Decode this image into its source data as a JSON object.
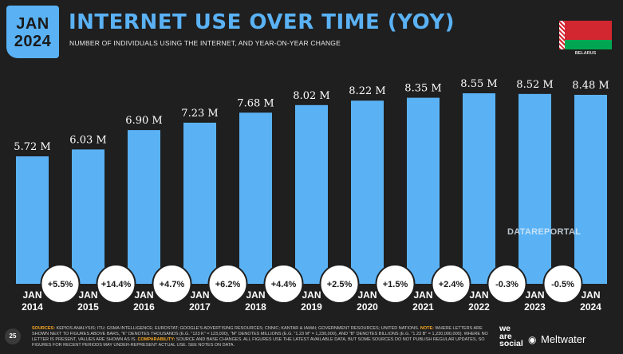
{
  "badge": {
    "month": "JAN",
    "year": "2024"
  },
  "header": {
    "title": "INTERNET USE OVER TIME (YOY)",
    "subtitle": "NUMBER OF INDIVIDUALS USING THE INTERNET, AND YEAR-ON-YEAR CHANGE"
  },
  "country": {
    "name": "BELARUS",
    "flag_icon": "belarus-flag-icon"
  },
  "colors": {
    "bar": "#5ab2f5",
    "background": "#1f1f1f",
    "accent": "#f5a623"
  },
  "watermark": "DATAREPORTAL",
  "chart_data": {
    "type": "bar",
    "categories": [
      "JAN 2014",
      "JAN 2015",
      "JAN 2016",
      "JAN 2017",
      "JAN 2018",
      "JAN 2019",
      "JAN 2020",
      "JAN 2021",
      "JAN 2022",
      "JAN 2023",
      "JAN 2024"
    ],
    "category_lines": [
      [
        "JAN",
        "2014"
      ],
      [
        "JAN",
        "2015"
      ],
      [
        "JAN",
        "2016"
      ],
      [
        "JAN",
        "2017"
      ],
      [
        "JAN",
        "2018"
      ],
      [
        "JAN",
        "2019"
      ],
      [
        "JAN",
        "2020"
      ],
      [
        "JAN",
        "2021"
      ],
      [
        "JAN",
        "2022"
      ],
      [
        "JAN",
        "2023"
      ],
      [
        "JAN",
        "2024"
      ]
    ],
    "values": [
      5.72,
      6.03,
      6.9,
      7.23,
      7.68,
      8.02,
      8.22,
      8.35,
      8.55,
      8.52,
      8.48
    ],
    "value_labels": [
      "5.72 M",
      "6.03 M",
      "6.90 M",
      "7.23 M",
      "7.68 M",
      "8.02 M",
      "8.22 M",
      "8.35 M",
      "8.55 M",
      "8.52 M",
      "8.48 M"
    ],
    "yoy_labels": [
      "+5.5%",
      "+14.4%",
      "+4.7%",
      "+6.2%",
      "+4.4%",
      "+2.5%",
      "+1.5%",
      "+2.4%",
      "-0.3%",
      "-0.5%"
    ],
    "unit": "M"
  },
  "footer": {
    "page_number": "25",
    "sources_label": "SOURCES:",
    "sources_text": " KEPIOS ANALYSIS; ITU; GSMA INTELLIGENCE; EUROSTAT; GOOGLE'S ADVERTISING RESOURCES; CNNIC; KANTAR & IAMAI; GOVERNMENT RESOURCES; UNITED NATIONS.",
    "note_label": " NOTE:",
    "note_text": " WHERE LETTERS ARE SHOWN NEXT TO FIGURES ABOVE BARS, \"K\" DENOTES THOUSANDS (E.G. \"123 K\" = 123,000), \"M\" DENOTES MILLIONS (E.G. \"1.23 M\" = 1,230,000), AND \"B\" DENOTES BILLIONS (E.G. \"1.23 B\" = 1,230,000,000). WHERE NO LETTER IS PRESENT, VALUES ARE SHOWN AS IS.",
    "comparability_label": " COMPARABILITY:",
    "comparability_text": " SOURCE AND BASE CHANGES. ALL FIGURES USE THE LATEST AVAILABLE DATA, BUT SOME SOURCES DO NOT PUBLISH REGULAR UPDATES, SO FIGURES FOR RECENT PERIODS MAY UNDER-REPRESENT ACTUAL USE. SEE NOTES ON DATA.",
    "brand_line1": "we",
    "brand_line2": "are",
    "brand_line3": "social",
    "partner": "Meltwater"
  }
}
